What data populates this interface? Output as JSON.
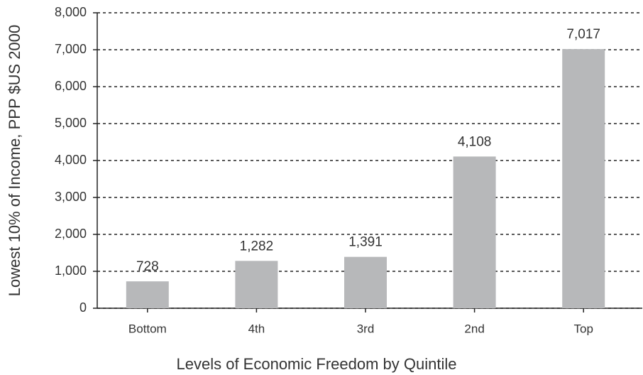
{
  "chart_data": {
    "type": "bar",
    "categories": [
      "Bottom",
      "4th",
      "3rd",
      "2nd",
      "Top"
    ],
    "values": [
      728,
      1282,
      1391,
      4108,
      7017
    ],
    "value_labels": [
      "728",
      "1,282",
      "1,391",
      "4,108",
      "7,017"
    ],
    "color": "#b7b8ba",
    "xlabel": "Levels of Economic Freedom by Quintile",
    "ylabel": "Lowest 10% of Income, PPP $US 2000",
    "ylim": [
      0,
      8000
    ],
    "yticks": [
      0,
      {
        "value": 1000,
        "label": "1,000"
      },
      {
        "value": 2000,
        "label": "2,000"
      },
      {
        "value": 3000,
        "label": "3,000"
      },
      {
        "value": 4000,
        "label": "4,000"
      },
      {
        "value": 5000,
        "label": "5,000"
      },
      {
        "value": 6000,
        "label": "6,000"
      },
      {
        "value": 7000,
        "label": "7,000"
      },
      {
        "value": 8000,
        "label": "8,000"
      }
    ],
    "grid": true
  }
}
